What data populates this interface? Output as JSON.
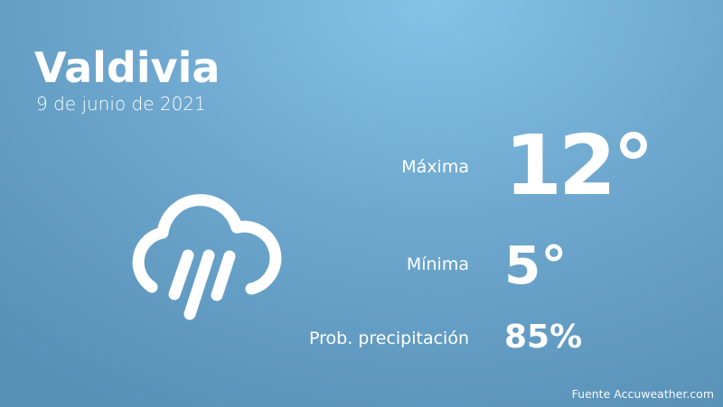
{
  "header": {
    "city": "Valdivia",
    "date": "9 de junio de 2021"
  },
  "weather": {
    "icon": "rain-cloud-icon",
    "max_label": "Máxima",
    "max_value": "12°",
    "min_label": "Mínima",
    "min_value": "5°",
    "precip_label": "Prob. precipitación",
    "precip_value": "85%"
  },
  "footer": {
    "source": "Fuente Accuweather.com"
  },
  "colors": {
    "background_top": "#86c2e6",
    "background_bottom": "#5890b6",
    "text": "#ffffff"
  }
}
